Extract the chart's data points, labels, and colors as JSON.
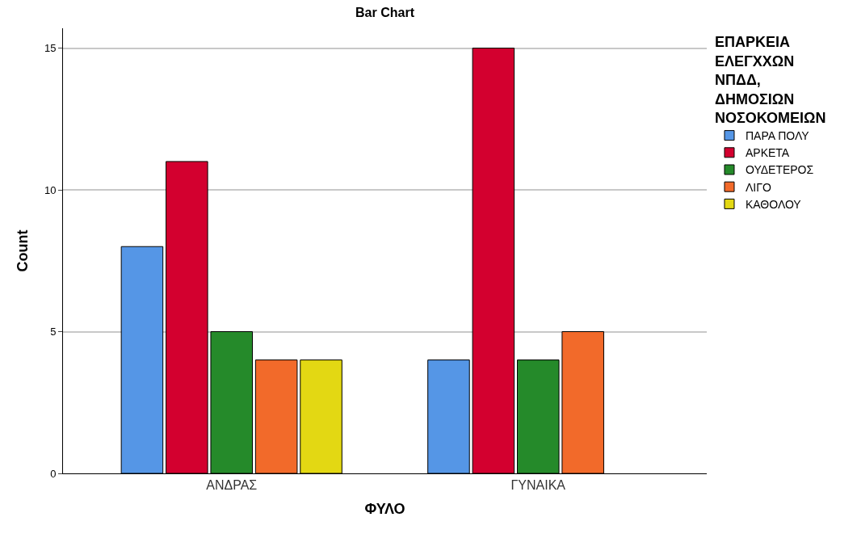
{
  "chart_data": {
    "type": "bar",
    "title": "Bar Chart",
    "xlabel": "ΦΥΛΟ",
    "ylabel": "Count",
    "legend_title": "ΕΠΑΡΚΕΙΑ ΕΛΕΓΧΧΩΝ ΝΠΔΔ, ΔΗΜΟΣΙΩΝ ΝΟΣΟΚΟΜΕΙΩΝ",
    "categories": [
      "ΑΝΔΡΑΣ",
      "ΓΥΝΑΙΚΑ"
    ],
    "series": [
      {
        "name": "ΠΑΡΑ ΠΟΛΥ",
        "color": "#5596e6",
        "values": [
          8,
          4
        ]
      },
      {
        "name": "ΑΡΚΕΤΑ",
        "color": "#d3002f",
        "values": [
          11,
          15
        ]
      },
      {
        "name": "ΟΥΔΕΤΕΡΟΣ",
        "color": "#258a2a",
        "values": [
          5,
          4
        ]
      },
      {
        "name": "ΛΙΓΟ",
        "color": "#f26a2a",
        "values": [
          4,
          5
        ]
      },
      {
        "name": "ΚΑΘΟΛΟΥ",
        "color": "#e3d813",
        "values": [
          4,
          null
        ]
      }
    ],
    "ylim": [
      0,
      15.7
    ],
    "yticks": [
      0,
      5,
      10,
      15
    ],
    "grid": "y",
    "legend": "top right"
  }
}
